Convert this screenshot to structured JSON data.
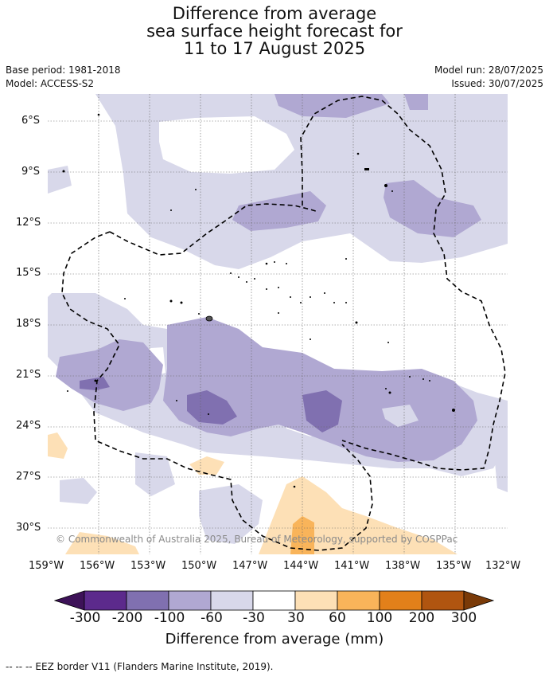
{
  "title": {
    "line1": "Difference from average",
    "line2": "sea surface height forecast for",
    "line3": "11 to 17 August 2025"
  },
  "meta": {
    "base_period": "Base period: 1981-2018",
    "model": "Model: ACCESS-S2",
    "model_run": "Model run: 28/07/2025",
    "issued": "Issued: 30/07/2025"
  },
  "map": {
    "lat_ticks": [
      "6°S",
      "9°S",
      "12°S",
      "15°S",
      "18°S",
      "21°S",
      "24°S",
      "27°S",
      "30°S"
    ],
    "lon_ticks": [
      "159°W",
      "156°W",
      "153°W",
      "150°W",
      "147°W",
      "144°W",
      "141°W",
      "138°W",
      "135°W",
      "132°W"
    ],
    "copyright": "© Commonwealth of Australia 2025, Bureau of Meteorology, supported by COSPPac"
  },
  "colorbar": {
    "labels": [
      "-300",
      "-200",
      "-100",
      "-60",
      "-30",
      "30",
      "60",
      "100",
      "200",
      "300"
    ],
    "colors": [
      "#3d1258",
      "#5c2a8c",
      "#8070b0",
      "#b0a8d2",
      "#d8d8ea",
      "#ffffff",
      "#fde0b6",
      "#f9b45a",
      "#e2801a",
      "#b05510",
      "#7a3a08"
    ],
    "title": "Difference from average (mm)"
  },
  "footnote": "--  --  -- EEZ border V11 (Flanders Marine Institute, 2019)."
}
